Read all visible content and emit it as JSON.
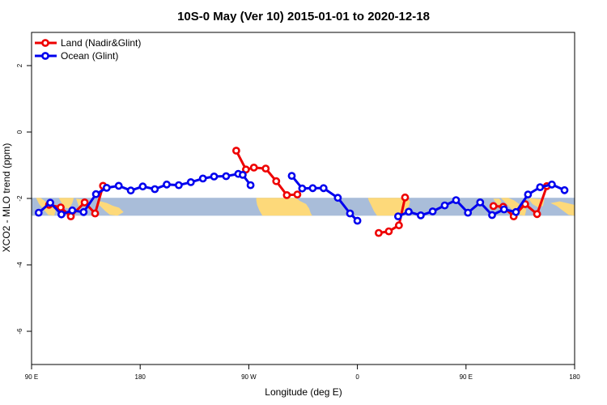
{
  "chart_data": {
    "type": "line",
    "title": "10S-0 May (Ver 10)   2015-01-01 to 2020-12-18",
    "xlabel": "Longitude (deg E)",
    "ylabel": "XCO2 - MLO trend (ppm)",
    "xlim": [
      90,
      450
    ],
    "ylim": [
      -7,
      3
    ],
    "x_ticks": [
      {
        "value": 90,
        "label": "90 E"
      },
      {
        "value": 162,
        "label": "180"
      },
      {
        "value": 234,
        "label": "90 W"
      },
      {
        "value": 306,
        "label": "0"
      },
      {
        "value": 378,
        "label": "90 E"
      },
      {
        "value": 450,
        "label": "180"
      }
    ],
    "y_ticks": [
      {
        "value": 2,
        "label": "2"
      },
      {
        "value": 0,
        "label": "0"
      },
      {
        "value": -2,
        "label": "-2"
      },
      {
        "value": -4,
        "label": "-4"
      },
      {
        "value": -6,
        "label": "-6"
      }
    ],
    "band": {
      "from": -1.98,
      "to": -2.52,
      "color": "#a9bdd9"
    },
    "land_color": "#fdd97a",
    "grid": false,
    "legend_position": "top-left",
    "series": [
      {
        "name": "Land (Nadir&Glint)",
        "color": "#ee0000",
        "segments": [
          [
            [
              101.6,
              -2.19
            ],
            [
              109.3,
              -2.27
            ],
            [
              116.0,
              -2.54
            ],
            [
              125.2,
              -2.12
            ],
            [
              132.1,
              -2.45
            ],
            [
              137.4,
              -1.62
            ]
          ],
          [
            [
              225.7,
              -0.56
            ],
            [
              232.1,
              -1.13
            ],
            [
              237.4,
              -1.07
            ],
            [
              245.2,
              -1.1
            ],
            [
              252.2,
              -1.48
            ],
            [
              259.2,
              -1.9
            ],
            [
              266.2,
              -1.88
            ]
          ],
          [
            [
              320.1,
              -3.04
            ],
            [
              326.8,
              -2.99
            ],
            [
              333.5,
              -2.81
            ],
            [
              337.6,
              -1.97
            ]
          ],
          [
            [
              396.2,
              -2.23
            ],
            [
              402.7,
              -2.25
            ],
            [
              409.6,
              -2.54
            ],
            [
              417.2,
              -2.17
            ],
            [
              425.1,
              -2.47
            ],
            [
              431.6,
              -1.63
            ]
          ]
        ]
      },
      {
        "name": "Ocean (Glint)",
        "color": "#0000ee",
        "segments": [
          [
            [
              94.7,
              -2.43
            ],
            [
              102.4,
              -2.13
            ],
            [
              109.8,
              -2.48
            ],
            [
              117.0,
              -2.36
            ],
            [
              124.5,
              -2.41
            ],
            [
              132.7,
              -1.87
            ],
            [
              139.8,
              -1.68
            ],
            [
              147.8,
              -1.62
            ],
            [
              155.8,
              -1.76
            ],
            [
              163.7,
              -1.64
            ],
            [
              171.7,
              -1.72
            ],
            [
              179.6,
              -1.58
            ],
            [
              187.6,
              -1.6
            ],
            [
              195.6,
              -1.51
            ],
            [
              203.6,
              -1.4
            ],
            [
              211.0,
              -1.34
            ],
            [
              219.0,
              -1.33
            ],
            [
              227.0,
              -1.26
            ],
            [
              230.0,
              -1.29
            ],
            [
              235.2,
              -1.6
            ]
          ],
          [
            [
              262.5,
              -1.32
            ],
            [
              269.4,
              -1.7
            ],
            [
              276.4,
              -1.69
            ],
            [
              283.6,
              -1.69
            ],
            [
              293.0,
              -1.98
            ],
            [
              301.1,
              -2.45
            ],
            [
              306.0,
              -2.67
            ]
          ],
          [
            [
              333.0,
              -2.54
            ],
            [
              340.0,
              -2.4
            ],
            [
              348.0,
              -2.51
            ],
            [
              355.9,
              -2.39
            ],
            [
              363.9,
              -2.21
            ],
            [
              371.4,
              -2.05
            ],
            [
              379.3,
              -2.43
            ],
            [
              387.4,
              -2.12
            ],
            [
              395.3,
              -2.5
            ],
            [
              403.2,
              -2.33
            ],
            [
              411.1,
              -2.41
            ],
            [
              419.1,
              -1.88
            ],
            [
              427.1,
              -1.66
            ],
            [
              434.9,
              -1.58
            ],
            [
              443.3,
              -1.75
            ]
          ]
        ]
      }
    ]
  }
}
